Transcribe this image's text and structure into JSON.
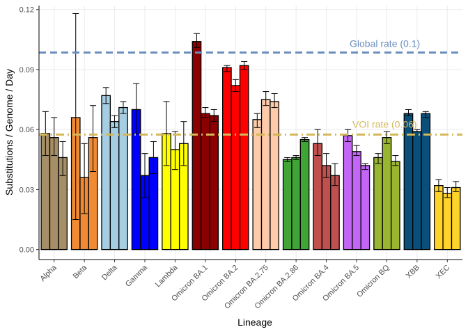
{
  "chart_data": {
    "type": "bar",
    "xlabel": "Lineage",
    "ylabel": "Substitutions / Genome / Day",
    "ylim": [
      -0.005,
      0.122
    ],
    "yticks": [
      "0.00",
      "0.03",
      "0.06",
      "0.09",
      "0.12"
    ],
    "ytick_values": [
      0,
      0.03,
      0.06,
      0.09,
      0.12
    ],
    "grid": true,
    "categories": [
      "Alpha",
      "Beta",
      "Delta",
      "Gamma",
      "Lambda",
      "Omicron BA.1",
      "Omicron BA.2",
      "Omicron BA.2.75",
      "Omicron BA.2.86",
      "Omicron BA.4",
      "Omicron BA.5",
      "Omicron BQ",
      "XBB",
      "XEC"
    ],
    "colors": [
      "#A68E66",
      "#F08A33",
      "#A6CEE3",
      "#0000FF",
      "#FFFF00",
      "#8B0000",
      "#FF0000",
      "#FDCBA9",
      "#3FA535",
      "#C0504D",
      "#C466F5",
      "#9AB530",
      "#0A4F79",
      "#FFD42A"
    ],
    "groups": [
      {
        "values": [
          0.058,
          0.056,
          0.046
        ],
        "lower": [
          0.047,
          0.047,
          0.037
        ],
        "upper": [
          0.069,
          0.066,
          0.054
        ]
      },
      {
        "values": [
          0.066,
          0.036,
          0.056
        ],
        "lower": [
          0.015,
          0.018,
          0.039
        ],
        "upper": [
          0.118,
          0.053,
          0.072
        ]
      },
      {
        "values": [
          0.077,
          0.064,
          0.071
        ],
        "lower": [
          0.073,
          0.061,
          0.068
        ],
        "upper": [
          0.081,
          0.067,
          0.074
        ]
      },
      {
        "values": [
          0.07,
          0.037,
          0.046
        ],
        "lower": [
          0.058,
          0.026,
          0.038
        ],
        "upper": [
          0.083,
          0.048,
          0.054
        ]
      },
      {
        "values": [
          0.058,
          0.05,
          0.053
        ],
        "lower": [
          0.042,
          0.04,
          0.042
        ],
        "upper": [
          0.074,
          0.059,
          0.064
        ]
      },
      {
        "values": [
          0.104,
          0.068,
          0.067
        ],
        "lower": [
          0.101,
          0.066,
          0.064
        ],
        "upper": [
          0.108,
          0.071,
          0.07
        ]
      },
      {
        "values": [
          0.091,
          0.082,
          0.092
        ],
        "lower": [
          0.089,
          0.079,
          0.09
        ],
        "upper": [
          0.092,
          0.085,
          0.094
        ]
      },
      {
        "values": [
          0.065,
          0.075,
          0.074
        ],
        "lower": [
          0.061,
          0.072,
          0.071
        ],
        "upper": [
          0.068,
          0.079,
          0.078
        ]
      },
      {
        "values": [
          0.045,
          0.046,
          0.055
        ],
        "lower": [
          0.044,
          0.045,
          0.054
        ],
        "upper": [
          0.046,
          0.047,
          0.056
        ]
      },
      {
        "values": [
          0.053,
          0.042,
          0.037
        ],
        "lower": [
          0.047,
          0.036,
          0.032
        ],
        "upper": [
          0.06,
          0.048,
          0.043
        ]
      },
      {
        "values": [
          0.057,
          0.049,
          0.042
        ],
        "lower": [
          0.054,
          0.047,
          0.04
        ],
        "upper": [
          0.06,
          0.052,
          0.043
        ]
      },
      {
        "values": [
          0.046,
          0.056,
          0.044
        ],
        "lower": [
          0.043,
          0.053,
          0.042
        ],
        "upper": [
          0.048,
          0.059,
          0.047
        ]
      },
      {
        "values": [
          0.068,
          0.059,
          0.068
        ],
        "lower": [
          0.067,
          0.059,
          0.066
        ],
        "upper": [
          0.07,
          0.06,
          0.069
        ]
      },
      {
        "values": [
          0.032,
          0.028,
          0.031
        ],
        "lower": [
          0.029,
          0.026,
          0.029
        ],
        "upper": [
          0.035,
          0.031,
          0.034
        ]
      }
    ],
    "reference_lines": [
      {
        "label": "Global rate (0.1)",
        "value": 0.0985,
        "color": "#6B8EBF",
        "dash": "dashed"
      },
      {
        "label": "VOI rate (0.06)",
        "value": 0.0575,
        "color": "#D4B85A",
        "dash": "dotdash"
      }
    ]
  }
}
